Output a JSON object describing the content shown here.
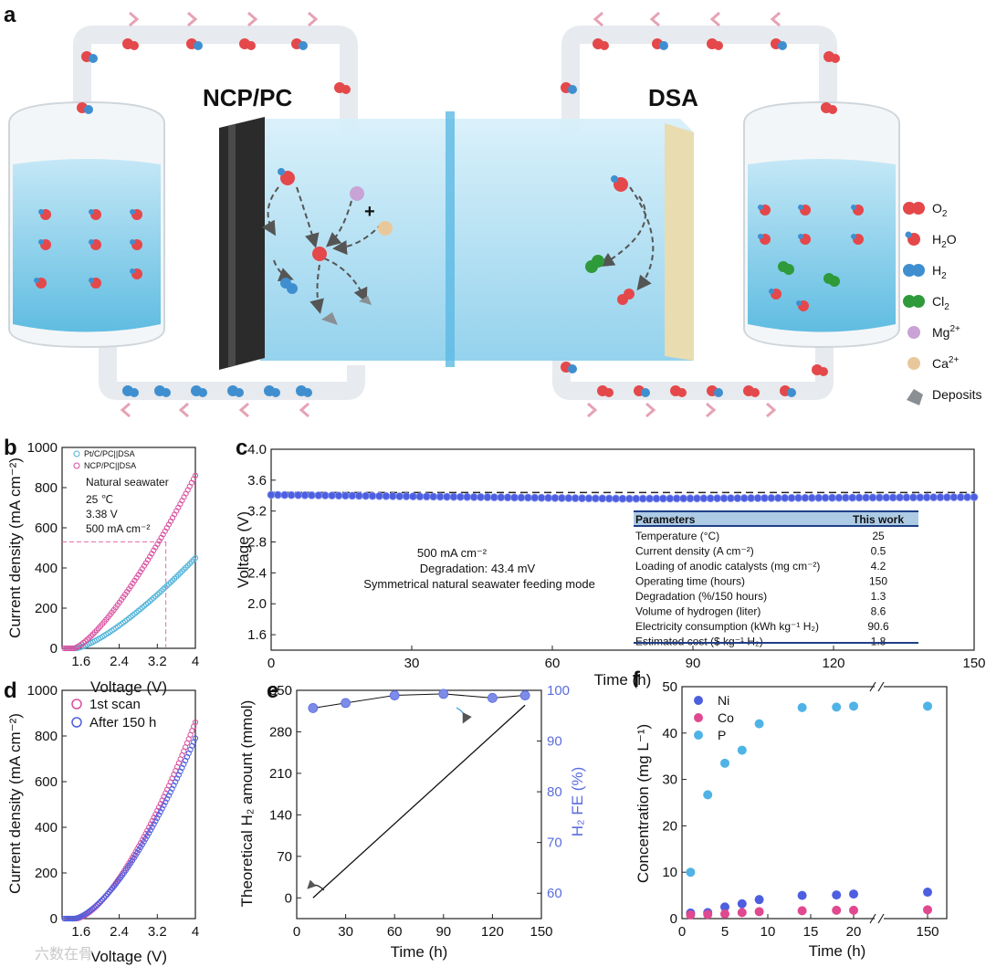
{
  "panel_letters": [
    "a",
    "b",
    "c",
    "d",
    "e",
    "f"
  ],
  "schematic": {
    "left_label": "NCP/PC",
    "right_label": "DSA",
    "plus": "+",
    "legend": [
      {
        "label": "O",
        "sub": "2",
        "sup": "",
        "color": "#e4484b",
        "icon": "o2-molecule-icon"
      },
      {
        "label": "H",
        "sub": "2",
        "sup": "",
        "tail": "O",
        "color": "#e4484b",
        "icon": "h2o-molecule-icon"
      },
      {
        "label": "H",
        "sub": "2",
        "sup": "",
        "color": "#3f8fd0",
        "icon": "h2-molecule-icon"
      },
      {
        "label": "Cl",
        "sub": "2",
        "sup": "",
        "color": "#2e9a3a",
        "icon": "cl2-molecule-icon"
      },
      {
        "label": "Mg",
        "sub": "",
        "sup": "2+",
        "color": "#c9a3d6",
        "icon": "mg-ion-icon"
      },
      {
        "label": "Ca",
        "sub": "",
        "sup": "2+",
        "color": "#e8c89a",
        "icon": "ca-ion-icon"
      },
      {
        "label": "Deposits",
        "sub": "",
        "sup": "",
        "color": "#8a8f93",
        "icon": "deposit-icon"
      }
    ],
    "colors": {
      "water": "#9fd6ee",
      "tank": "#6fc3e3",
      "cathode": "#2b2b2b",
      "anode": "#e9dcb0",
      "arrow": "#e6a3b5"
    }
  },
  "chart_data": [
    {
      "id": "b",
      "type": "scatter",
      "xlabel": "Voltage (V)",
      "ylabel": "Current density (mA cm⁻²)",
      "xlim": [
        1.2,
        4.0
      ],
      "ylim": [
        0,
        1000
      ],
      "xticks": [
        1.6,
        2.4,
        3.2,
        4.0
      ],
      "yticks": [
        0,
        200,
        400,
        600,
        800,
        1000
      ],
      "series": [
        {
          "name": "Pt/C/PC||DSA",
          "color": "#4fb3d9",
          "onset": 1.5,
          "end_value": 450
        },
        {
          "name": "NCP/PC||DSA",
          "color": "#d94fa0",
          "onset": 1.45,
          "end_value": 860
        }
      ],
      "annotations": [
        "Natural seawater",
        "25 ℃",
        "3.38 V",
        "500 mA cm⁻²"
      ],
      "marker": {
        "x": 3.38,
        "y": 530
      }
    },
    {
      "id": "c",
      "type": "scatter",
      "xlabel": "Time (h)",
      "ylabel": "Voltage (V)",
      "xlim": [
        0,
        150
      ],
      "ylim": [
        1.4,
        4.0
      ],
      "xticks": [
        0,
        30,
        60,
        90,
        120,
        150
      ],
      "yticks": [
        1.6,
        2.0,
        2.4,
        2.8,
        3.2,
        3.6,
        4.0
      ],
      "series": [
        {
          "name": "Voltage",
          "color": "#4d5fe0",
          "start": 3.41,
          "mid": 3.36,
          "end": 3.38
        }
      ],
      "reference_line": 3.44,
      "annotations": [
        "500 mA cm⁻²",
        "Degradation: 43.4 mV",
        "Symmetrical natural seawater feeding mode"
      ],
      "table": {
        "headers": [
          "Parameters",
          "This work"
        ],
        "rows": [
          [
            "Temperature (°C)",
            "25"
          ],
          [
            "Current density (A cm⁻²)",
            "0.5"
          ],
          [
            "Loading of anodic catalysts (mg cm⁻²)",
            "4.2"
          ],
          [
            "Operating time (hours)",
            "150"
          ],
          [
            "Degradation (%/150 hours)",
            "1.3"
          ],
          [
            "Volume of hydrogen (liter)",
            "8.6"
          ],
          [
            "Electricity consumption (kWh kg⁻¹ H₂)",
            "90.6"
          ],
          [
            "Estimated cost ($ kg⁻¹ H₂)",
            "1.8"
          ]
        ]
      }
    },
    {
      "id": "d",
      "type": "scatter",
      "xlabel": "Voltage (V)",
      "ylabel": "Current density (mA cm⁻²)",
      "xlim": [
        1.2,
        4.0
      ],
      "ylim": [
        0,
        1000
      ],
      "xticks": [
        1.6,
        2.4,
        3.2,
        4.0
      ],
      "yticks": [
        0,
        200,
        400,
        600,
        800,
        1000
      ],
      "series": [
        {
          "name": "1st scan",
          "color": "#d94fa0",
          "onset": 1.5,
          "end_value": 860
        },
        {
          "name": "After 150 h",
          "color": "#4d5fe0",
          "onset": 1.45,
          "end_value": 790
        }
      ]
    },
    {
      "id": "e",
      "type": "line",
      "xlabel": "Time (h)",
      "ylabel": "Theoretical H₂ amount (mmol)",
      "y2label": "H₂ FE (%)",
      "xlim": [
        0,
        150
      ],
      "ylim": [
        -35,
        350
      ],
      "y2lim": [
        55,
        100
      ],
      "xticks": [
        0,
        30,
        60,
        90,
        120,
        150
      ],
      "yticks": [
        0,
        70,
        140,
        210,
        280,
        350
      ],
      "y2ticks": [
        60,
        70,
        80,
        90,
        100
      ],
      "series": [
        {
          "name": "Theoretical H₂ amount",
          "color": "#111111",
          "x": [
            10,
            140
          ],
          "y": [
            0,
            325
          ]
        },
        {
          "name": "H₂ FE",
          "color": "#7d8ce8",
          "x": [
            10,
            30,
            60,
            90,
            120,
            140
          ],
          "y": [
            96.5,
            97.5,
            99,
            99.3,
            98.5,
            99
          ]
        }
      ]
    },
    {
      "id": "f",
      "type": "scatter",
      "xlabel": "Time (h)",
      "ylabel": "Concentration (mg L⁻¹)",
      "ylim": [
        0,
        50
      ],
      "yticks": [
        0,
        10,
        20,
        30,
        40,
        50
      ],
      "xticks": [
        "0",
        "5",
        "10",
        "15",
        "20",
        "150"
      ],
      "series": [
        {
          "name": "Ni",
          "color": "#4d5fe0",
          "x": [
            1,
            3,
            5,
            7,
            9,
            14,
            18,
            20,
            150
          ],
          "y": [
            1.2,
            1.3,
            2.5,
            3.2,
            4.1,
            5.0,
            5.1,
            5.3,
            5.7
          ]
        },
        {
          "name": "Co",
          "color": "#e0488f",
          "x": [
            1,
            3,
            5,
            7,
            9,
            14,
            18,
            20,
            150
          ],
          "y": [
            0.8,
            0.9,
            1.0,
            1.3,
            1.5,
            1.7,
            1.8,
            1.8,
            1.9
          ]
        },
        {
          "name": "P",
          "color": "#4fb3e6",
          "x": [
            1,
            3,
            5,
            7,
            9,
            14,
            18,
            20,
            150
          ],
          "y": [
            10,
            26.7,
            33.5,
            36.3,
            42,
            45.5,
            45.6,
            45.8,
            45.8
          ]
        }
      ]
    }
  ],
  "watermark": "六数在骨"
}
